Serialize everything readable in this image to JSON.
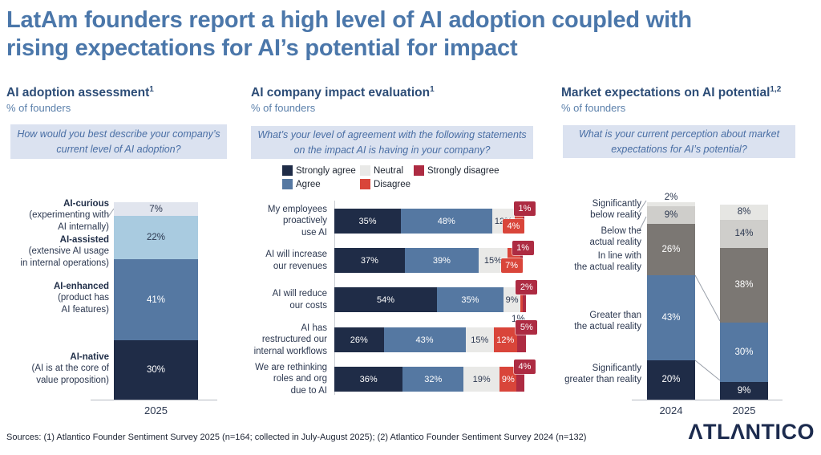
{
  "title": "LatAm founders report a high level of AI adoption coupled with\nrising expectations for AI’s potential for impact",
  "panels": [
    {
      "title": "AI adoption assessment",
      "sup": "1",
      "subtitle": "% of founders",
      "question": "How would you best describe your company’s current level of AI adoption?"
    },
    {
      "title": "AI company impact evaluation",
      "sup": "1",
      "subtitle": "% of founders",
      "question": "What’s your level of agreement with the following statements on the impact AI is having in your company?"
    },
    {
      "title": "Market expectations on AI potential",
      "sup": "1,2",
      "subtitle": "% of founders",
      "question": "What is your current perception about market expectations for AI’s potential?"
    }
  ],
  "legend": {
    "items": [
      {
        "label": "Strongly agree",
        "color": "#1f2c47"
      },
      {
        "label": "Agree",
        "color": "#5578a2"
      },
      {
        "label": "Neutral",
        "color": "#e9e9e7"
      },
      {
        "label": "Disagree",
        "color": "#d9453a"
      },
      {
        "label": "Strongly disagree",
        "color": "#ad2b42"
      }
    ]
  },
  "chart_data": [
    {
      "type": "bar",
      "subtype": "stacked-vertical",
      "title": "AI adoption assessment",
      "ylabel": "% of founders",
      "categories": [
        "2025"
      ],
      "series": [
        {
          "name": "AI-curious",
          "description": "(experimenting with\nAI internally)",
          "values": [
            7
          ],
          "color": "#e1e5ee",
          "text_color": "#2c3850"
        },
        {
          "name": "AI-assisted",
          "description": "(extensive AI usage\nin internal operations)",
          "values": [
            22
          ],
          "color": "#a9cbe0",
          "text_color": "#2c3850"
        },
        {
          "name": "AI-enhanced",
          "description": "(product has\nAI features)",
          "values": [
            41
          ],
          "color": "#5578a2",
          "text_color": "#ffffff"
        },
        {
          "name": "AI-native",
          "description": "(AI is at the core of\nvalue proposition)",
          "values": [
            30
          ],
          "color": "#1f2c47",
          "text_color": "#ffffff"
        }
      ]
    },
    {
      "type": "bar",
      "subtype": "stacked-horizontal",
      "title": "AI company impact evaluation",
      "xlabel": "% of founders",
      "categories": [
        "Strongly agree",
        "Agree",
        "Neutral",
        "Disagree",
        "Strongly disagree"
      ],
      "rows": [
        {
          "label": "My employees\nproactively\nuse AI",
          "values": [
            35,
            48,
            12,
            4,
            1
          ]
        },
        {
          "label": "AI will increase\nour revenues",
          "values": [
            37,
            39,
            15,
            7,
            1
          ]
        },
        {
          "label": "AI will reduce\nour costs",
          "values": [
            54,
            35,
            9,
            1,
            2
          ]
        },
        {
          "label": "AI has\nrestructured our\ninternal workflows",
          "values": [
            26,
            43,
            15,
            12,
            5
          ]
        },
        {
          "label": "We are rethinking\nroles and org\ndue to AI",
          "values": [
            36,
            32,
            19,
            9,
            4
          ]
        }
      ]
    },
    {
      "type": "bar",
      "subtype": "stacked-vertical",
      "title": "Market expectations on AI potential",
      "ylabel": "% of founders",
      "categories": [
        "2024",
        "2025"
      ],
      "series": [
        {
          "name": "Significantly\nbelow reality",
          "values": [
            2,
            8
          ],
          "color": "#e6e6e3",
          "text_color": "#2c3850"
        },
        {
          "name": "Below the\nactual reality",
          "values": [
            9,
            14
          ],
          "color": "#cfcecb",
          "text_color": "#2c3850"
        },
        {
          "name": "In line with\nthe actual reality",
          "values": [
            26,
            38
          ],
          "color": "#7b7773",
          "text_color": "#ffffff"
        },
        {
          "name": "Greater than\nthe actual reality",
          "values": [
            43,
            30
          ],
          "color": "#5578a2",
          "text_color": "#ffffff"
        },
        {
          "name": "Significantly\ngreater than reality",
          "values": [
            20,
            9
          ],
          "color": "#1f2c47",
          "text_color": "#ffffff"
        }
      ]
    }
  ],
  "footer": {
    "sources": "Sources: (1) Atlantico Founder Sentiment Survey 2025 (n=164; collected in July-August 2025); (2) Atlantico Founder Sentiment Survey 2024 (n=132)",
    "logo": "ATLANTICO"
  }
}
